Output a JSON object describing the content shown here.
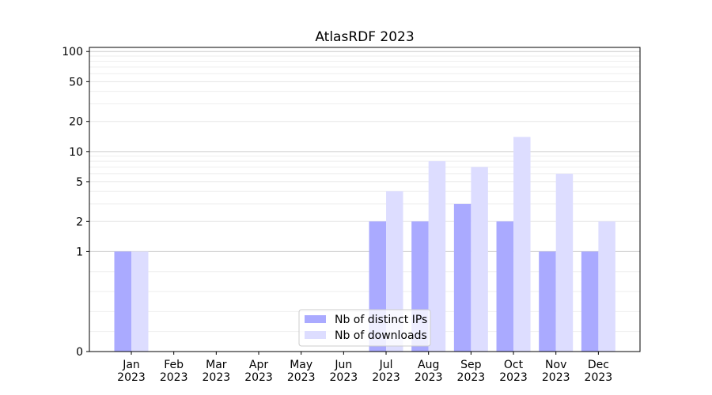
{
  "chart_data": {
    "type": "bar",
    "title": "AtlasRDF 2023",
    "xlabel": "",
    "ylabel": "",
    "yscale": "symlog",
    "ylim": [
      0,
      110
    ],
    "yticks": [
      {
        "value": 0,
        "label": "0"
      },
      {
        "value": 1,
        "label": "1"
      },
      {
        "value": 2,
        "label": "2"
      },
      {
        "value": 5,
        "label": "5"
      },
      {
        "value": 10,
        "label": "10"
      },
      {
        "value": 20,
        "label": "20"
      },
      {
        "value": 50,
        "label": "50"
      },
      {
        "value": 100,
        "label": "100"
      }
    ],
    "categories": [
      {
        "month": "Jan",
        "year": "2023"
      },
      {
        "month": "Feb",
        "year": "2023"
      },
      {
        "month": "Mar",
        "year": "2023"
      },
      {
        "month": "Apr",
        "year": "2023"
      },
      {
        "month": "May",
        "year": "2023"
      },
      {
        "month": "Jun",
        "year": "2023"
      },
      {
        "month": "Jul",
        "year": "2023"
      },
      {
        "month": "Aug",
        "year": "2023"
      },
      {
        "month": "Sep",
        "year": "2023"
      },
      {
        "month": "Oct",
        "year": "2023"
      },
      {
        "month": "Nov",
        "year": "2023"
      },
      {
        "month": "Dec",
        "year": "2023"
      }
    ],
    "series": [
      {
        "name": "Nb of distinct IPs",
        "color": "#aaaaff",
        "values": [
          1,
          0,
          0,
          0,
          0,
          0,
          2,
          2,
          3,
          2,
          1,
          1
        ]
      },
      {
        "name": "Nb of downloads",
        "color": "#ddddff",
        "values": [
          1,
          0,
          0,
          0,
          0,
          0,
          4,
          8,
          7,
          14,
          6,
          2
        ]
      }
    ],
    "legend_position": "bottom-center",
    "grid": true
  }
}
